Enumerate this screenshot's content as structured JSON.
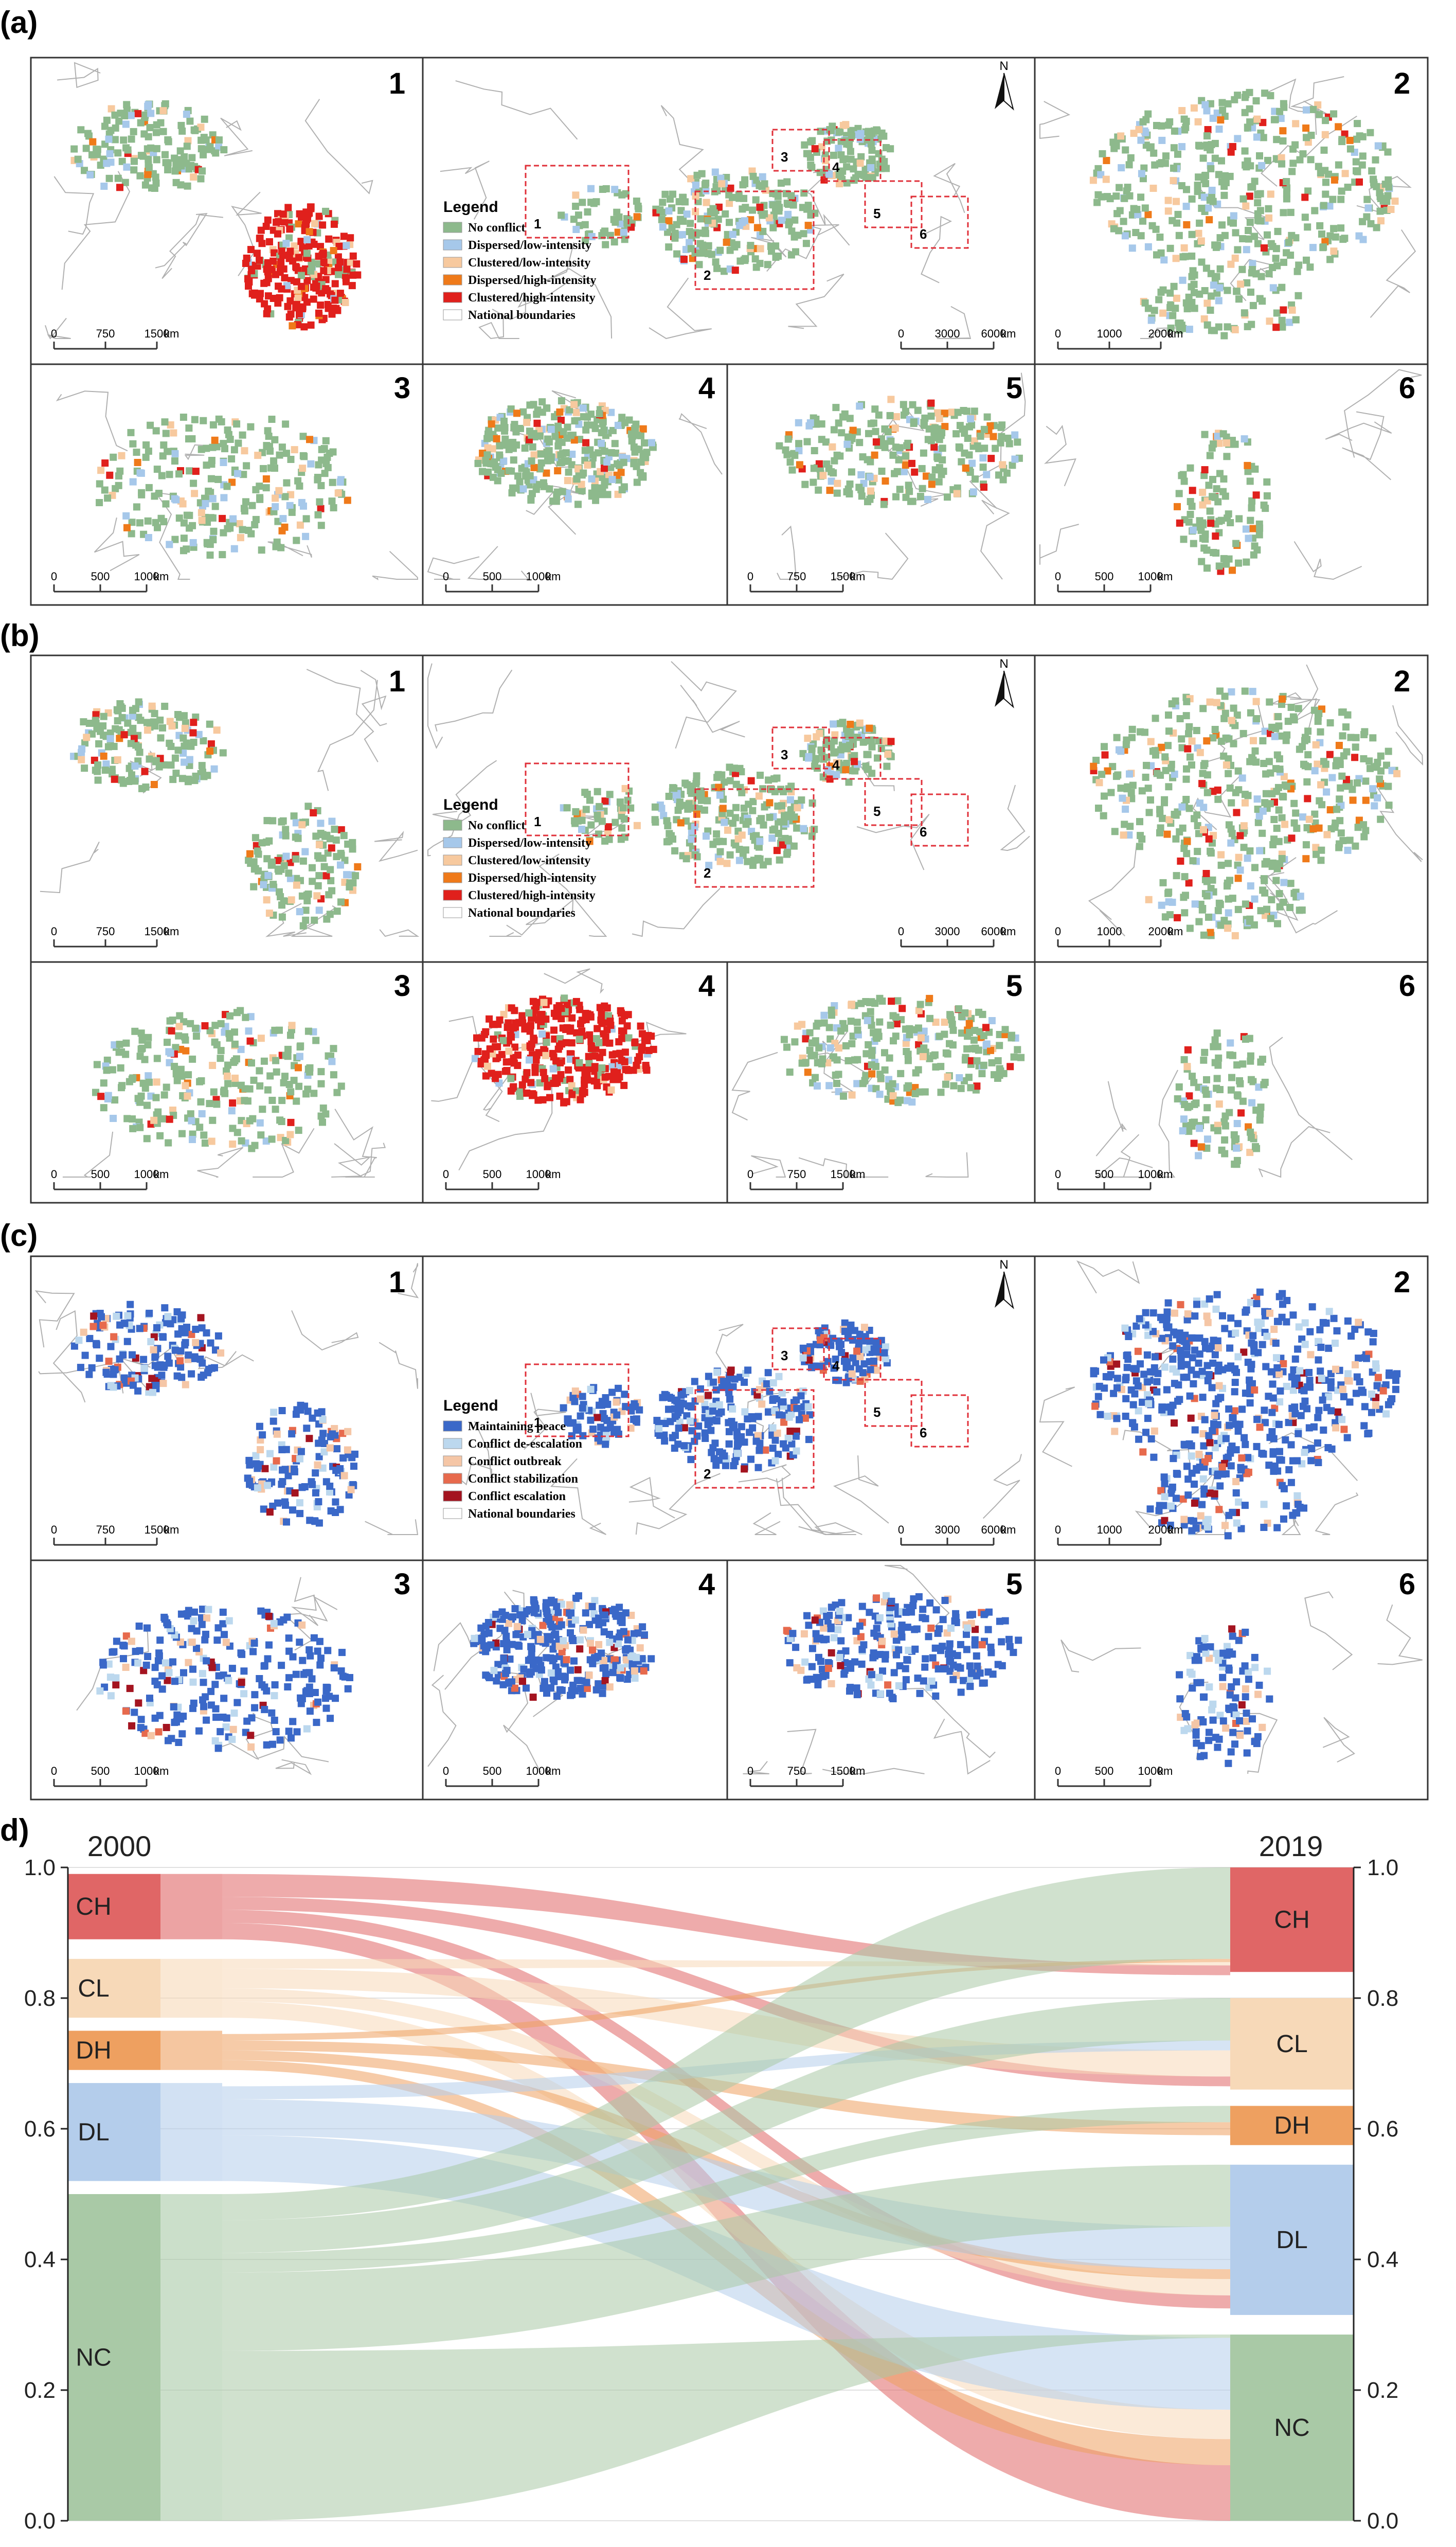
{
  "panel_labels": [
    "(a)",
    "(b)",
    "(c)",
    "d)"
  ],
  "map_numbers": [
    "1",
    "2",
    "3",
    "4",
    "5",
    "6"
  ],
  "world_box_numbers": [
    "1",
    "2",
    "3",
    "4",
    "5",
    "6"
  ],
  "north_label": "N",
  "legend_intensity": {
    "title": "Legend",
    "items": [
      {
        "label": "No conflict",
        "color": "#8db98c"
      },
      {
        "label": "Dispersed/low-intensity",
        "color": "#a6c8ea"
      },
      {
        "label": "Clustered/low-intensity",
        "color": "#f7c99e"
      },
      {
        "label": "Dispersed/high-intensity",
        "color": "#ef7a1a"
      },
      {
        "label": "Clustered/high-intensity",
        "color": "#e0201c"
      },
      {
        "label": "National boundaries",
        "color": "#ffffff"
      }
    ]
  },
  "legend_transition": {
    "title": "Legend",
    "items": [
      {
        "label": "Maintaining peace",
        "color": "#3a68c8"
      },
      {
        "label": "Conflict de-escalation",
        "color": "#bcd8ee"
      },
      {
        "label": "Conflict outbreak",
        "color": "#f5c6a6"
      },
      {
        "label": "Conflict stabilization",
        "color": "#e76a4d"
      },
      {
        "label": "Conflict escalation",
        "color": "#a41420"
      },
      {
        "label": "National boundaries",
        "color": "#ffffff"
      }
    ]
  },
  "scale_bars": {
    "map1": [
      "0",
      "750",
      "1500",
      "km"
    ],
    "world": [
      "0",
      "3000",
      "6000",
      "km"
    ],
    "map2": [
      "0",
      "1000",
      "2000",
      "km"
    ],
    "map3": [
      "0",
      "500",
      "1000",
      "km"
    ],
    "map4": [
      "0",
      "500",
      "1000",
      "km"
    ],
    "map5": [
      "0",
      "750",
      "1500",
      "km"
    ],
    "map6": [
      "0",
      "500",
      "1000",
      "km"
    ]
  },
  "chart_data": {
    "type": "sankey",
    "title": "",
    "left_year": "2000",
    "right_year": "2019",
    "axis_ticks": [
      "0.0",
      "0.2",
      "0.4",
      "0.6",
      "0.8",
      "1.0"
    ],
    "ylim": [
      0,
      1
    ],
    "categories": [
      "CH",
      "CL",
      "DH",
      "DL",
      "NC"
    ],
    "colors": {
      "CH": "#e06666",
      "CL": "#f7d9b8",
      "DH": "#eea060",
      "DL": "#b4cdeb",
      "NC": "#a9c9a6"
    },
    "nodes_2000": [
      {
        "name": "CH",
        "range": [
          0.89,
          0.99
        ]
      },
      {
        "name": "CL",
        "range": [
          0.77,
          0.86
        ]
      },
      {
        "name": "DH",
        "range": [
          0.69,
          0.75
        ]
      },
      {
        "name": "DL",
        "range": [
          0.52,
          0.67
        ]
      },
      {
        "name": "NC",
        "range": [
          0.0,
          0.5
        ]
      }
    ],
    "nodes_2019": [
      {
        "name": "CH",
        "range": [
          0.84,
          1.0
        ]
      },
      {
        "name": "CL",
        "range": [
          0.66,
          0.8
        ]
      },
      {
        "name": "DH",
        "range": [
          0.575,
          0.635
        ]
      },
      {
        "name": "DL",
        "range": [
          0.315,
          0.545
        ]
      },
      {
        "name": "NC",
        "range": [
          0.0,
          0.285
        ]
      }
    ],
    "flows": [
      {
        "from": "CH",
        "to": "CH",
        "l": [
          0.955,
          0.99
        ],
        "r": [
          0.835,
          0.85
        ]
      },
      {
        "from": "CH",
        "to": "CL",
        "l": [
          0.935,
          0.955
        ],
        "r": [
          0.665,
          0.68
        ]
      },
      {
        "from": "CH",
        "to": "DL",
        "l": [
          0.915,
          0.935
        ],
        "r": [
          0.325,
          0.345
        ]
      },
      {
        "from": "CH",
        "to": "NC",
        "l": [
          0.89,
          0.915
        ],
        "r": [
          0.0,
          0.085
        ]
      },
      {
        "from": "CL",
        "to": "CH",
        "l": [
          0.845,
          0.86
        ],
        "r": [
          0.85,
          0.855
        ]
      },
      {
        "from": "CL",
        "to": "CL",
        "l": [
          0.815,
          0.845
        ],
        "r": [
          0.68,
          0.72
        ]
      },
      {
        "from": "CL",
        "to": "DL",
        "l": [
          0.795,
          0.815
        ],
        "r": [
          0.345,
          0.37
        ]
      },
      {
        "from": "CL",
        "to": "NC",
        "l": [
          0.77,
          0.795
        ],
        "r": [
          0.125,
          0.17
        ]
      },
      {
        "from": "DH",
        "to": "CH",
        "l": [
          0.735,
          0.745
        ],
        "r": [
          0.855,
          0.86
        ]
      },
      {
        "from": "DH",
        "to": "DH",
        "l": [
          0.72,
          0.735
        ],
        "r": [
          0.59,
          0.61
        ]
      },
      {
        "from": "DH",
        "to": "DL",
        "l": [
          0.705,
          0.72
        ],
        "r": [
          0.37,
          0.385
        ]
      },
      {
        "from": "DH",
        "to": "NC",
        "l": [
          0.69,
          0.705
        ],
        "r": [
          0.085,
          0.125
        ]
      },
      {
        "from": "DL",
        "to": "CL",
        "l": [
          0.645,
          0.665
        ],
        "r": [
          0.72,
          0.735
        ]
      },
      {
        "from": "DL",
        "to": "DL",
        "l": [
          0.59,
          0.645
        ],
        "r": [
          0.385,
          0.45
        ]
      },
      {
        "from": "DL",
        "to": "NC",
        "l": [
          0.52,
          0.59
        ],
        "r": [
          0.17,
          0.28
        ]
      },
      {
        "from": "NC",
        "to": "CH",
        "l": [
          0.46,
          0.5
        ],
        "r": [
          0.86,
          1.0
        ]
      },
      {
        "from": "NC",
        "to": "CL",
        "l": [
          0.41,
          0.46
        ],
        "r": [
          0.735,
          0.8
        ]
      },
      {
        "from": "NC",
        "to": "DH",
        "l": [
          0.38,
          0.41
        ],
        "r": [
          0.61,
          0.635
        ]
      },
      {
        "from": "NC",
        "to": "DL",
        "l": [
          0.26,
          0.38
        ],
        "r": [
          0.45,
          0.545
        ]
      },
      {
        "from": "NC",
        "to": "NC",
        "l": [
          0.0,
          0.26
        ],
        "r": [
          0.28,
          0.285
        ]
      }
    ]
  }
}
